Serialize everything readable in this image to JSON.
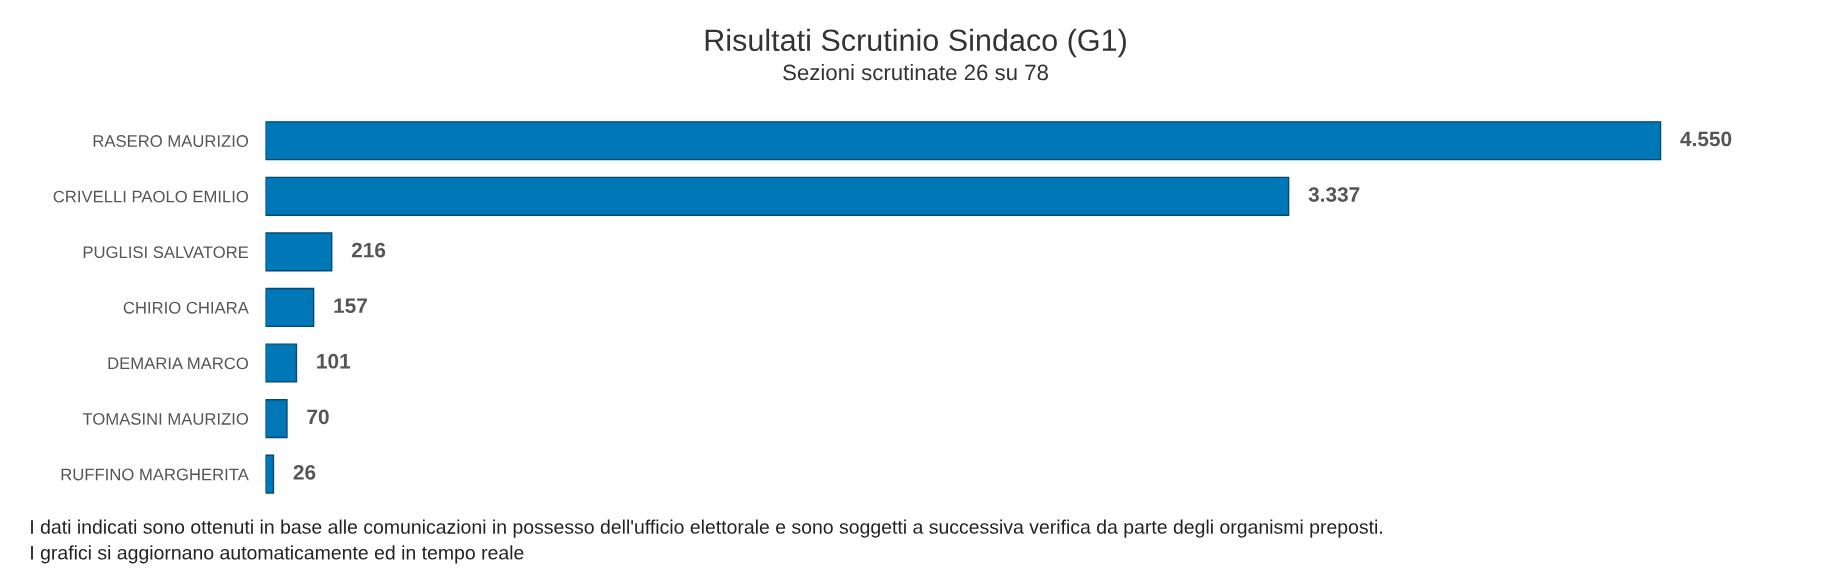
{
  "chart_data": {
    "type": "bar",
    "orientation": "horizontal",
    "title": "Risultati Scrutinio Sindaco (G1)",
    "subtitle": "Sezioni scrutinate 26 su 78",
    "categories": [
      "RASERO MAURIZIO",
      "CRIVELLI PAOLO EMILIO",
      "PUGLISI SALVATORE",
      "CHIRIO CHIARA",
      "DEMARIA MARCO",
      "TOMASINI MAURIZIO",
      "RUFFINO MARGHERITA"
    ],
    "values": [
      4550,
      3337,
      216,
      157,
      101,
      70,
      26
    ],
    "value_labels": [
      "4.550",
      "3.337",
      "216",
      "157",
      "101",
      "70",
      "26"
    ],
    "color": "#0077b6",
    "grid": false,
    "legend": false,
    "annotations": [
      "I dati indicati sono ottenuti in base alle comunicazioni in possesso dell'ufficio elettorale e sono soggetti a successiva verifica da parte degli organismi preposti.",
      "I grafici si aggiornano automaticamente ed in tempo reale"
    ]
  }
}
